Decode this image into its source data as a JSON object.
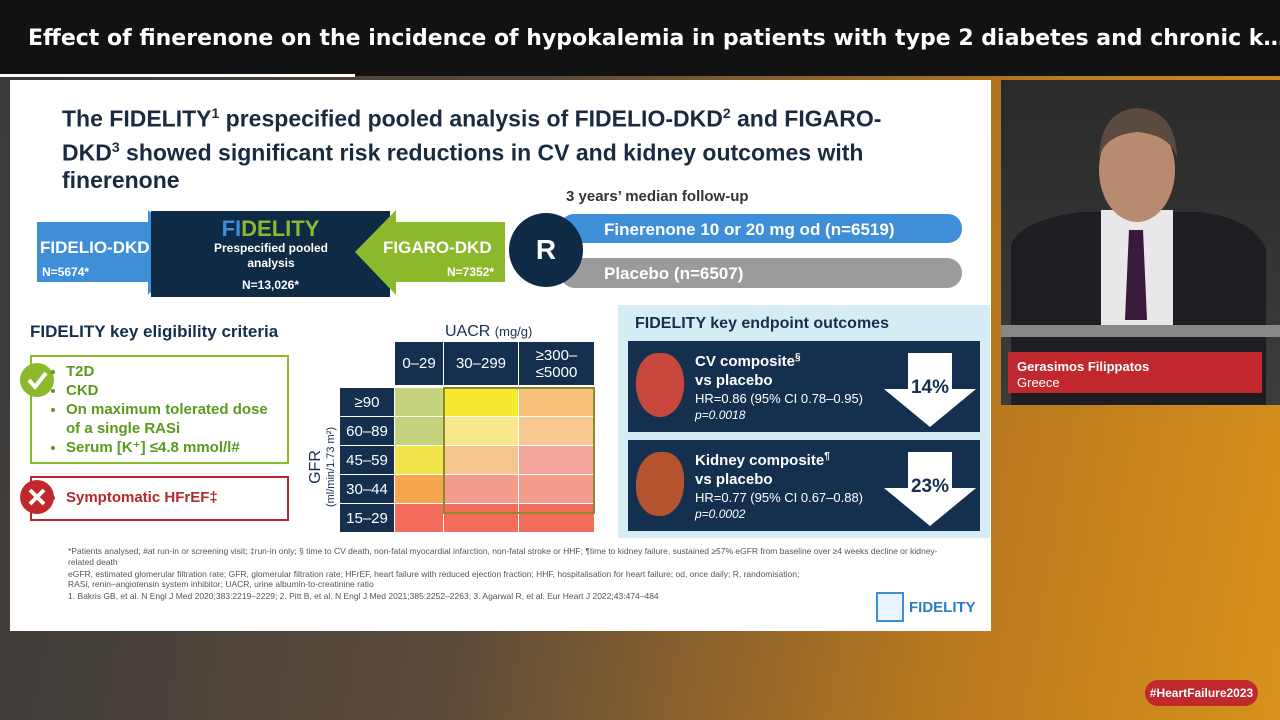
{
  "video_title": "Effect of finerenone on the incidence of hypokalemia in patients with type 2 diabetes and chronic k…",
  "slide": {
    "title": [
      "The FIDELITY",
      "1",
      " prespecified pooled analysis of FIDELIO-DKD",
      "2",
      " and FIGARO-DKD",
      "3",
      " showed significant risk reductions in CV and kidney outcomes with finerenone"
    ],
    "design": {
      "left_trial": "FIDELIO-DKD",
      "left_n": "N=5674*",
      "pooled_logo_a": "FI",
      "pooled_logo_b": "DELITY",
      "pooled_desc": "Prespecified pooled analysis",
      "pooled_n": "N=13,026*",
      "right_trial": "FIGARO-DKD",
      "right_n": "N=7352*",
      "randomisation": "R",
      "followup": "3 years’ median follow-up",
      "arms": [
        "Finerenone 10 or 20 mg od (n=6519)",
        "Placebo (n=6507)"
      ]
    },
    "eligibility": {
      "title": "FIDELITY key eligibility criteria",
      "include": [
        "T2D",
        "CKD",
        "On maximum tolerated dose of a single RASi",
        "Serum [K⁺] ≤4.8 mmol/l#"
      ],
      "exclude": [
        "Symptomatic HFrEF‡"
      ]
    },
    "heatmap": {
      "title": "UACR",
      "title_unit": "(mg/g)",
      "columns": [
        "0–29",
        "30–299",
        "≥300–≤5000"
      ],
      "rows": [
        "≥90",
        "60–89",
        "45–59",
        "30–44",
        "15–29"
      ],
      "row_axis": "GFR",
      "row_unit": "(ml/min/1.73 m²)",
      "colors": [
        [
          "#c5d47c",
          "#f7e830",
          "#f8c27c"
        ],
        [
          "#c5d47c",
          "#f8e88c",
          "#f7c98e"
        ],
        [
          "#f3e44c",
          "#f6c68c",
          "#f4a49c"
        ],
        [
          "#f6a64c",
          "#f39c8c",
          "#f39c8c"
        ],
        [
          "#f36c5c",
          "#f36c5c",
          "#f36c5c"
        ]
      ]
    },
    "outcomes": {
      "title": "FIDELITY key endpoint outcomes",
      "items": [
        {
          "name": "CV composite",
          "mark": "§",
          "comparison": "vs placebo",
          "hr": "HR=0.86 (95% CI 0.78–0.95)",
          "p": "p=0.0018",
          "reduction": "14%"
        },
        {
          "name": "Kidney composite",
          "mark": "¶",
          "comparison": "vs placebo",
          "hr": "HR=0.77 (95% CI 0.67–0.88)",
          "p": "p=0.0002",
          "reduction": "23%"
        }
      ]
    },
    "footnotes": [
      "*Patients analysed; #at run-in or screening visit; ‡run-in only; § time to CV death, non-fatal myocardial infarction, non-fatal stroke or HHF; ¶time to kidney failure, sustained ≥57% eGFR from baseline over ≥4 weeks decline or kidney-related death",
      "eGFR, estimated glomerular filtration rate; GFR, glomerular filtration rate; HFrEF, heart failure with reduced ejection fraction; HHF, hospitalisation for heart failure; od, once daily; R, randomisation;",
      "RASi, renin–angiotensin system inhibitor; UACR, urine albumin-to-creatinine ratio",
      "1. Bakris GB, et al. N Engl J Med 2020;383:2219–2229; 2. Pitt B, et al. N Engl J Med 2021;385:2252–2263; 3. Agarwal R, et al. Eur Heart J 2022;43:474–484"
    ],
    "logo": "FIDELITY"
  },
  "speaker": {
    "name": "Gerasimos Filippatos",
    "country": "Greece"
  },
  "hashtag": "#HeartFailure2023"
}
